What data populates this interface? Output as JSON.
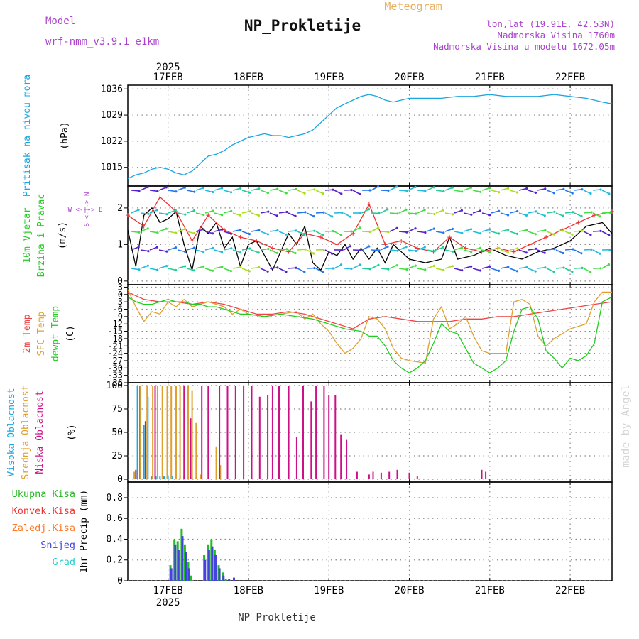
{
  "header": {
    "model_label": "Model",
    "model_name": "wrf-nmm_v3.9.1  e1km",
    "title": "NP_Prokletije",
    "subtitle": "Meteogram",
    "lonlat": "lon,lat (19.91E, 42.53N)",
    "altitude": "Nadmorska Visina 1760m",
    "model_altitude": "Nadmorska Visina u modelu 1672.05m",
    "footer": "NP_Prokletije",
    "watermark": "made by Angel"
  },
  "colors": {
    "pressure": "#1aa6e0",
    "t2m": "#ee4444",
    "sfc": "#e0a030",
    "dewpt": "#22cc22",
    "high_cloud": "#1aa6e0",
    "mid_cloud": "#e0a030",
    "low_cloud": "#cc1188",
    "total_precip": "#22bb22",
    "conv_precip": "#ee3333",
    "frz_precip": "#ff7722",
    "snow": "#4444dd",
    "graupel": "#22cccc",
    "header_purple": "#aa44cc",
    "header_orange": "#e8b060"
  },
  "chart_data": {
    "type": "line",
    "x_axis": {
      "ticks": [
        "17FEB",
        "18FEB",
        "19FEB",
        "20FEB",
        "21FEB",
        "22FEB"
      ],
      "year": "2025",
      "range_days": [
        16.5,
        22.52
      ]
    },
    "panels": [
      {
        "id": "pressure",
        "type": "line",
        "ylabels": [
          "Pritisak na nivou mora",
          "(hPa)"
        ],
        "ylim": [
          1010,
          1037
        ],
        "yticks": [
          1015,
          1022,
          1029,
          1036
        ],
        "series": [
          {
            "color": "pressure",
            "x": [
              16.5,
              16.6,
              16.7,
              16.8,
              16.9,
              17.0,
              17.1,
              17.2,
              17.3,
              17.4,
              17.5,
              17.6,
              17.7,
              17.8,
              17.9,
              18.0,
              18.1,
              18.2,
              18.3,
              18.4,
              18.5,
              18.6,
              18.7,
              18.8,
              18.9,
              19.0,
              19.1,
              19.2,
              19.3,
              19.4,
              19.5,
              19.6,
              19.7,
              19.8,
              19.9,
              20.0,
              20.2,
              20.4,
              20.6,
              20.8,
              21.0,
              21.2,
              21.4,
              21.6,
              21.8,
              22.0,
              22.2,
              22.4,
              22.52
            ],
            "y": [
              1012,
              1013,
              1013.5,
              1014.5,
              1015,
              1014.5,
              1013.5,
              1013,
              1014,
              1016,
              1018,
              1018.5,
              1019.5,
              1021,
              1022,
              1023,
              1023.5,
              1024,
              1023.5,
              1023.5,
              1023,
              1023.5,
              1024,
              1025,
              1027,
              1029,
              1031,
              1032,
              1033,
              1034,
              1034.5,
              1034,
              1033,
              1032.5,
              1033,
              1033.5,
              1033.5,
              1033.5,
              1034,
              1034,
              1034.5,
              1034,
              1034,
              1034,
              1034.5,
              1034,
              1033.5,
              1032.5,
              1032
            ]
          }
        ]
      },
      {
        "id": "wind",
        "type": "line",
        "ylabels": [
          "10m Vjetar",
          "Brzina i Pravac",
          "(m/s)"
        ],
        "compass": "W <-|-> E",
        "compass_v": "S <-|-> N",
        "ylim": [
          -0.1,
          2.6
        ],
        "yticks": [
          0,
          1,
          2
        ],
        "series": [
          {
            "name": "speed",
            "color": "#000000",
            "x": [
              16.5,
              16.6,
              16.7,
              16.8,
              16.9,
              17.0,
              17.1,
              17.2,
              17.3,
              17.4,
              17.5,
              17.6,
              17.7,
              17.8,
              17.9,
              18.0,
              18.1,
              18.2,
              18.3,
              18.4,
              18.5,
              18.6,
              18.7,
              18.8,
              18.9,
              19.0,
              19.1,
              19.2,
              19.3,
              19.4,
              19.5,
              19.6,
              19.7,
              19.8,
              19.9,
              20.0,
              20.2,
              20.4,
              20.5,
              20.6,
              20.8,
              21.0,
              21.2,
              21.4,
              21.6,
              21.8,
              22.0,
              22.2,
              22.4,
              22.52
            ],
            "y": [
              1.4,
              0.4,
              1.8,
              2.0,
              1.6,
              1.7,
              1.9,
              1.0,
              0.3,
              1.5,
              1.3,
              1.6,
              0.9,
              1.2,
              0.4,
              1.0,
              1.1,
              0.7,
              0.3,
              0.8,
              1.3,
              1.0,
              1.5,
              0.5,
              0.3,
              0.8,
              0.7,
              1.0,
              0.6,
              0.9,
              0.6,
              0.9,
              0.5,
              1.0,
              0.8,
              0.6,
              0.5,
              0.6,
              1.2,
              0.6,
              0.7,
              0.9,
              0.7,
              0.6,
              0.8,
              0.9,
              1.1,
              1.5,
              1.6,
              1.3
            ]
          },
          {
            "name": "gust",
            "color": "#ee3333",
            "x": [
              16.5,
              16.7,
              16.9,
              17.1,
              17.3,
              17.5,
              17.7,
              17.9,
              18.1,
              18.3,
              18.5,
              18.7,
              18.9,
              19.1,
              19.3,
              19.5,
              19.7,
              19.9,
              20.1,
              20.3,
              20.5,
              20.7,
              20.9,
              21.1,
              21.3,
              21.5,
              21.7,
              21.9,
              22.1,
              22.3,
              22.52
            ],
            "y": [
              1.8,
              1.5,
              2.3,
              1.9,
              1.1,
              1.8,
              1.4,
              1.2,
              1.1,
              0.9,
              0.8,
              1.3,
              1.2,
              1.0,
              1.3,
              2.1,
              1.0,
              1.1,
              0.9,
              0.8,
              1.2,
              0.9,
              0.8,
              0.9,
              0.8,
              1.0,
              1.2,
              1.4,
              1.6,
              1.8,
              1.9
            ]
          }
        ]
      },
      {
        "id": "temperature",
        "type": "line",
        "ylabels": [
          "2m Temp",
          "SFC Temp",
          "dewpt Temp",
          "(C)"
        ],
        "ylim": [
          -36,
          4
        ],
        "yticks": [
          3,
          0,
          -3,
          -6,
          -9,
          -12,
          -15,
          -18,
          -21,
          -24,
          -27,
          -30,
          -33,
          -36
        ],
        "series": [
          {
            "name": "2m Temp",
            "color": "t2m",
            "x": [
              16.5,
              16.7,
              16.9,
              17.1,
              17.3,
              17.5,
              17.7,
              17.9,
              18.1,
              18.3,
              18.5,
              18.7,
              18.9,
              19.1,
              19.3,
              19.5,
              19.7,
              19.9,
              20.1,
              20.3,
              20.5,
              20.7,
              20.9,
              21.1,
              21.3,
              21.5,
              21.7,
              21.9,
              22.1,
              22.3,
              22.52
            ],
            "y": [
              1,
              -2,
              -3,
              -3,
              -4,
              -3,
              -4,
              -6,
              -8,
              -8,
              -7,
              -8,
              -10,
              -12,
              -14,
              -10,
              -9,
              -10,
              -11,
              -11,
              -11,
              -10,
              -10,
              -9,
              -9,
              -8,
              -7,
              -6,
              -5,
              -4,
              -3
            ]
          },
          {
            "name": "SFC Temp",
            "color": "sfc",
            "x": [
              16.5,
              16.6,
              16.7,
              16.8,
              16.9,
              17.0,
              17.1,
              17.2,
              17.3,
              17.4,
              17.5,
              17.6,
              17.7,
              17.8,
              17.9,
              18.0,
              18.2,
              18.4,
              18.6,
              18.7,
              18.8,
              18.9,
              19.0,
              19.1,
              19.2,
              19.3,
              19.4,
              19.5,
              19.6,
              19.7,
              19.8,
              19.9,
              20.0,
              20.2,
              20.3,
              20.4,
              20.5,
              20.6,
              20.7,
              20.8,
              20.9,
              21.0,
              21.2,
              21.3,
              21.4,
              21.5,
              21.6,
              21.7,
              21.8,
              21.9,
              22.0,
              22.2,
              22.3,
              22.4,
              22.52
            ],
            "y": [
              2,
              -5,
              -11,
              -7,
              -8,
              -3,
              -5,
              -2,
              -5,
              -4,
              -3,
              -4,
              -5,
              -8,
              -6,
              -8,
              -9,
              -8,
              -7,
              -10,
              -8,
              -12,
              -15,
              -20,
              -24,
              -22,
              -18,
              -9,
              -10,
              -14,
              -22,
              -26,
              -27,
              -28,
              -10,
              -5,
              -14,
              -12,
              -9,
              -17,
              -23,
              -24,
              -24,
              -3,
              -2,
              -4,
              -17,
              -21,
              -18,
              -16,
              -14,
              -12,
              -3,
              1,
              1
            ]
          },
          {
            "name": "dewpt Temp",
            "color": "dewpt",
            "x": [
              16.5,
              16.6,
              16.7,
              16.8,
              16.9,
              17.0,
              17.1,
              17.2,
              17.3,
              17.4,
              17.5,
              17.6,
              17.7,
              17.8,
              17.9,
              18.0,
              18.2,
              18.4,
              18.6,
              18.8,
              19.0,
              19.2,
              19.4,
              19.5,
              19.6,
              19.7,
              19.8,
              19.9,
              20.0,
              20.1,
              20.2,
              20.3,
              20.4,
              20.5,
              20.6,
              20.7,
              20.8,
              20.9,
              21.0,
              21.1,
              21.2,
              21.3,
              21.4,
              21.5,
              21.6,
              21.7,
              21.8,
              21.9,
              22.0,
              22.1,
              22.2,
              22.3,
              22.4,
              22.52
            ],
            "y": [
              -1,
              -3,
              -4,
              -4,
              -3,
              -2,
              -3,
              -3,
              -4,
              -4,
              -5,
              -5,
              -6,
              -7,
              -8,
              -8,
              -9,
              -8,
              -9,
              -10,
              -12,
              -14,
              -15,
              -17,
              -17,
              -21,
              -27,
              -30,
              -32,
              -30,
              -27,
              -20,
              -12,
              -15,
              -16,
              -22,
              -28,
              -30,
              -32,
              -30,
              -27,
              -15,
              -6,
              -5,
              -10,
              -23,
              -26,
              -30,
              -26,
              -27,
              -25,
              -20,
              -3,
              -1
            ]
          }
        ]
      },
      {
        "id": "cloud",
        "type": "bar",
        "ylabels": [
          "Visoka Oblacnost",
          "Srednja Oblacnost",
          "Niska Oblacnost",
          "(%)"
        ],
        "ylim": [
          -3,
          103
        ],
        "yticks": [
          0,
          25,
          50,
          75,
          100
        ],
        "series": [
          {
            "name": "Visoka Oblacnost",
            "color": "high_cloud",
            "x": [
              16.62,
              16.65,
              16.7,
              16.75,
              16.8,
              16.85,
              16.9,
              16.95,
              17.0,
              17.05,
              17.1,
              17.15,
              17.2,
              17.25,
              17.3,
              17.35
            ],
            "values": [
              100,
              100,
              58,
              88,
              3,
              3,
              3,
              3,
              3,
              3,
              3,
              3,
              3,
              2,
              2,
              2
            ]
          },
          {
            "name": "Srednja Oblacnost",
            "color": "mid_cloud",
            "x": [
              16.58,
              16.66,
              16.74,
              16.81,
              16.87,
              16.93,
              16.99,
              17.04,
              17.1,
              17.15,
              17.2,
              17.25,
              17.3,
              17.35,
              17.4,
              17.6,
              17.65
            ],
            "values": [
              8,
              100,
              100,
              100,
              100,
              100,
              100,
              100,
              100,
              100,
              100,
              100,
              95,
              60,
              5,
              35,
              15
            ]
          },
          {
            "name": "Niska Oblacnost",
            "color": "low_cloud",
            "x": [
              16.6,
              16.72,
              16.84,
              17.2,
              17.28,
              17.42,
              17.5,
              17.64,
              17.74,
              17.84,
              17.94,
              18.04,
              18.14,
              18.24,
              18.3,
              18.38,
              18.5,
              18.6,
              18.68,
              18.78,
              18.84,
              18.94,
              19.0,
              19.08,
              19.15,
              19.22,
              19.35,
              19.5,
              19.55,
              19.65,
              19.75,
              19.85,
              20.0,
              20.1,
              20.9,
              20.95
            ],
            "values": [
              10,
              62,
              100,
              100,
              65,
              100,
              100,
              100,
              100,
              100,
              100,
              100,
              88,
              90,
              100,
              100,
              100,
              45,
              100,
              83,
              100,
              100,
              90,
              90,
              48,
              42,
              8,
              5,
              8,
              7,
              8,
              10,
              7,
              3,
              10,
              8
            ]
          }
        ]
      },
      {
        "id": "precip",
        "type": "bar",
        "ylabels": [
          "1hr Precip (mm)"
        ],
        "legend": [
          "Ukupna Kisa",
          "Konvek.Kisa",
          "Zaledj.Kisa",
          "Snijeg",
          "Grad"
        ],
        "ylim": [
          0,
          0.95
        ],
        "yticks": [
          0,
          0.2,
          0.4,
          0.6,
          0.8
        ],
        "series": [
          {
            "name": "Ukupna Kisa",
            "color": "total_precip",
            "x": [
              17.03,
              17.08,
              17.12,
              17.17,
              17.21,
              17.25,
              17.29,
              17.45,
              17.5,
              17.54,
              17.58,
              17.63,
              17.68,
              17.72
            ],
            "values": [
              0.15,
              0.4,
              0.38,
              0.5,
              0.35,
              0.18,
              0.05,
              0.25,
              0.35,
              0.4,
              0.3,
              0.15,
              0.08,
              0.02
            ]
          },
          {
            "name": "Snijeg",
            "color": "snow",
            "x": [
              17.04,
              17.09,
              17.13,
              17.18,
              17.22,
              17.26,
              17.46,
              17.51,
              17.55,
              17.59,
              17.64,
              17.69,
              17.76,
              17.82
            ],
            "values": [
              0.12,
              0.35,
              0.3,
              0.43,
              0.28,
              0.12,
              0.2,
              0.3,
              0.33,
              0.25,
              0.12,
              0.05,
              0.02,
              0.03
            ]
          }
        ]
      }
    ]
  }
}
